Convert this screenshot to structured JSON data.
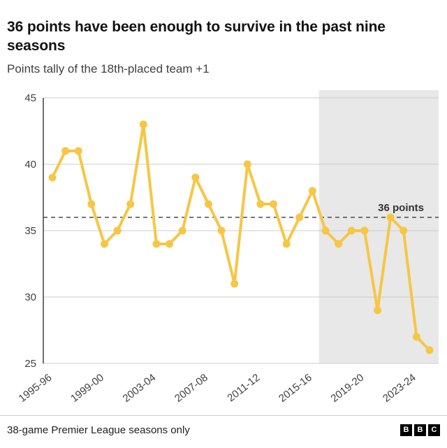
{
  "header": {
    "title": "36 points have been enough to survive in the past nine seasons",
    "subtitle": "Points tally of the 18th-placed team +1"
  },
  "chart_data": {
    "type": "line",
    "title": "36 points have been enough to survive in the past nine seasons",
    "subtitle": "Points tally of the 18th-placed team +1",
    "xlabel": "",
    "ylabel": "",
    "categories": [
      "1995-96",
      "1996-97",
      "1997-98",
      "1998-99",
      "1999-00",
      "2000-01",
      "2001-02",
      "2002-03",
      "2003-04",
      "2004-05",
      "2005-06",
      "2006-07",
      "2007-08",
      "2008-09",
      "2009-10",
      "2010-11",
      "2011-12",
      "2012-13",
      "2013-14",
      "2014-15",
      "2015-16",
      "2016-17",
      "2017-18",
      "2018-19",
      "2019-20",
      "2020-21",
      "2021-22",
      "2022-23",
      "2023-24",
      "2024-25"
    ],
    "values": [
      39,
      41,
      41,
      37,
      34,
      35,
      37,
      43,
      34,
      34,
      35,
      39,
      37,
      35,
      31,
      40,
      37,
      37,
      34,
      36,
      38,
      35,
      34,
      35,
      35,
      29,
      36,
      35,
      27,
      26
    ],
    "x_tick_labels": [
      "1995-96",
      "1999-00",
      "2003-04",
      "2007-08",
      "2011-12",
      "2015-16",
      "2019-20",
      "2023-24"
    ],
    "yticks": [
      25,
      30,
      35,
      40,
      45
    ],
    "ylim": [
      25,
      45
    ],
    "grid": "horizontal",
    "legend": "none",
    "threshold": {
      "value": 36,
      "label": "36 points"
    },
    "shaded_region": {
      "start_category": "2016-17",
      "end_category": "2024-25"
    },
    "line_color": "#F6C645",
    "shade_color": "#E8E8E8",
    "grid_color": "#cccccc",
    "axis_color": "#222222",
    "tick_label_color": "#404040"
  },
  "footer": {
    "note": "38-game Premier League seasons only",
    "logo_letters": [
      "B",
      "B",
      "C"
    ]
  }
}
